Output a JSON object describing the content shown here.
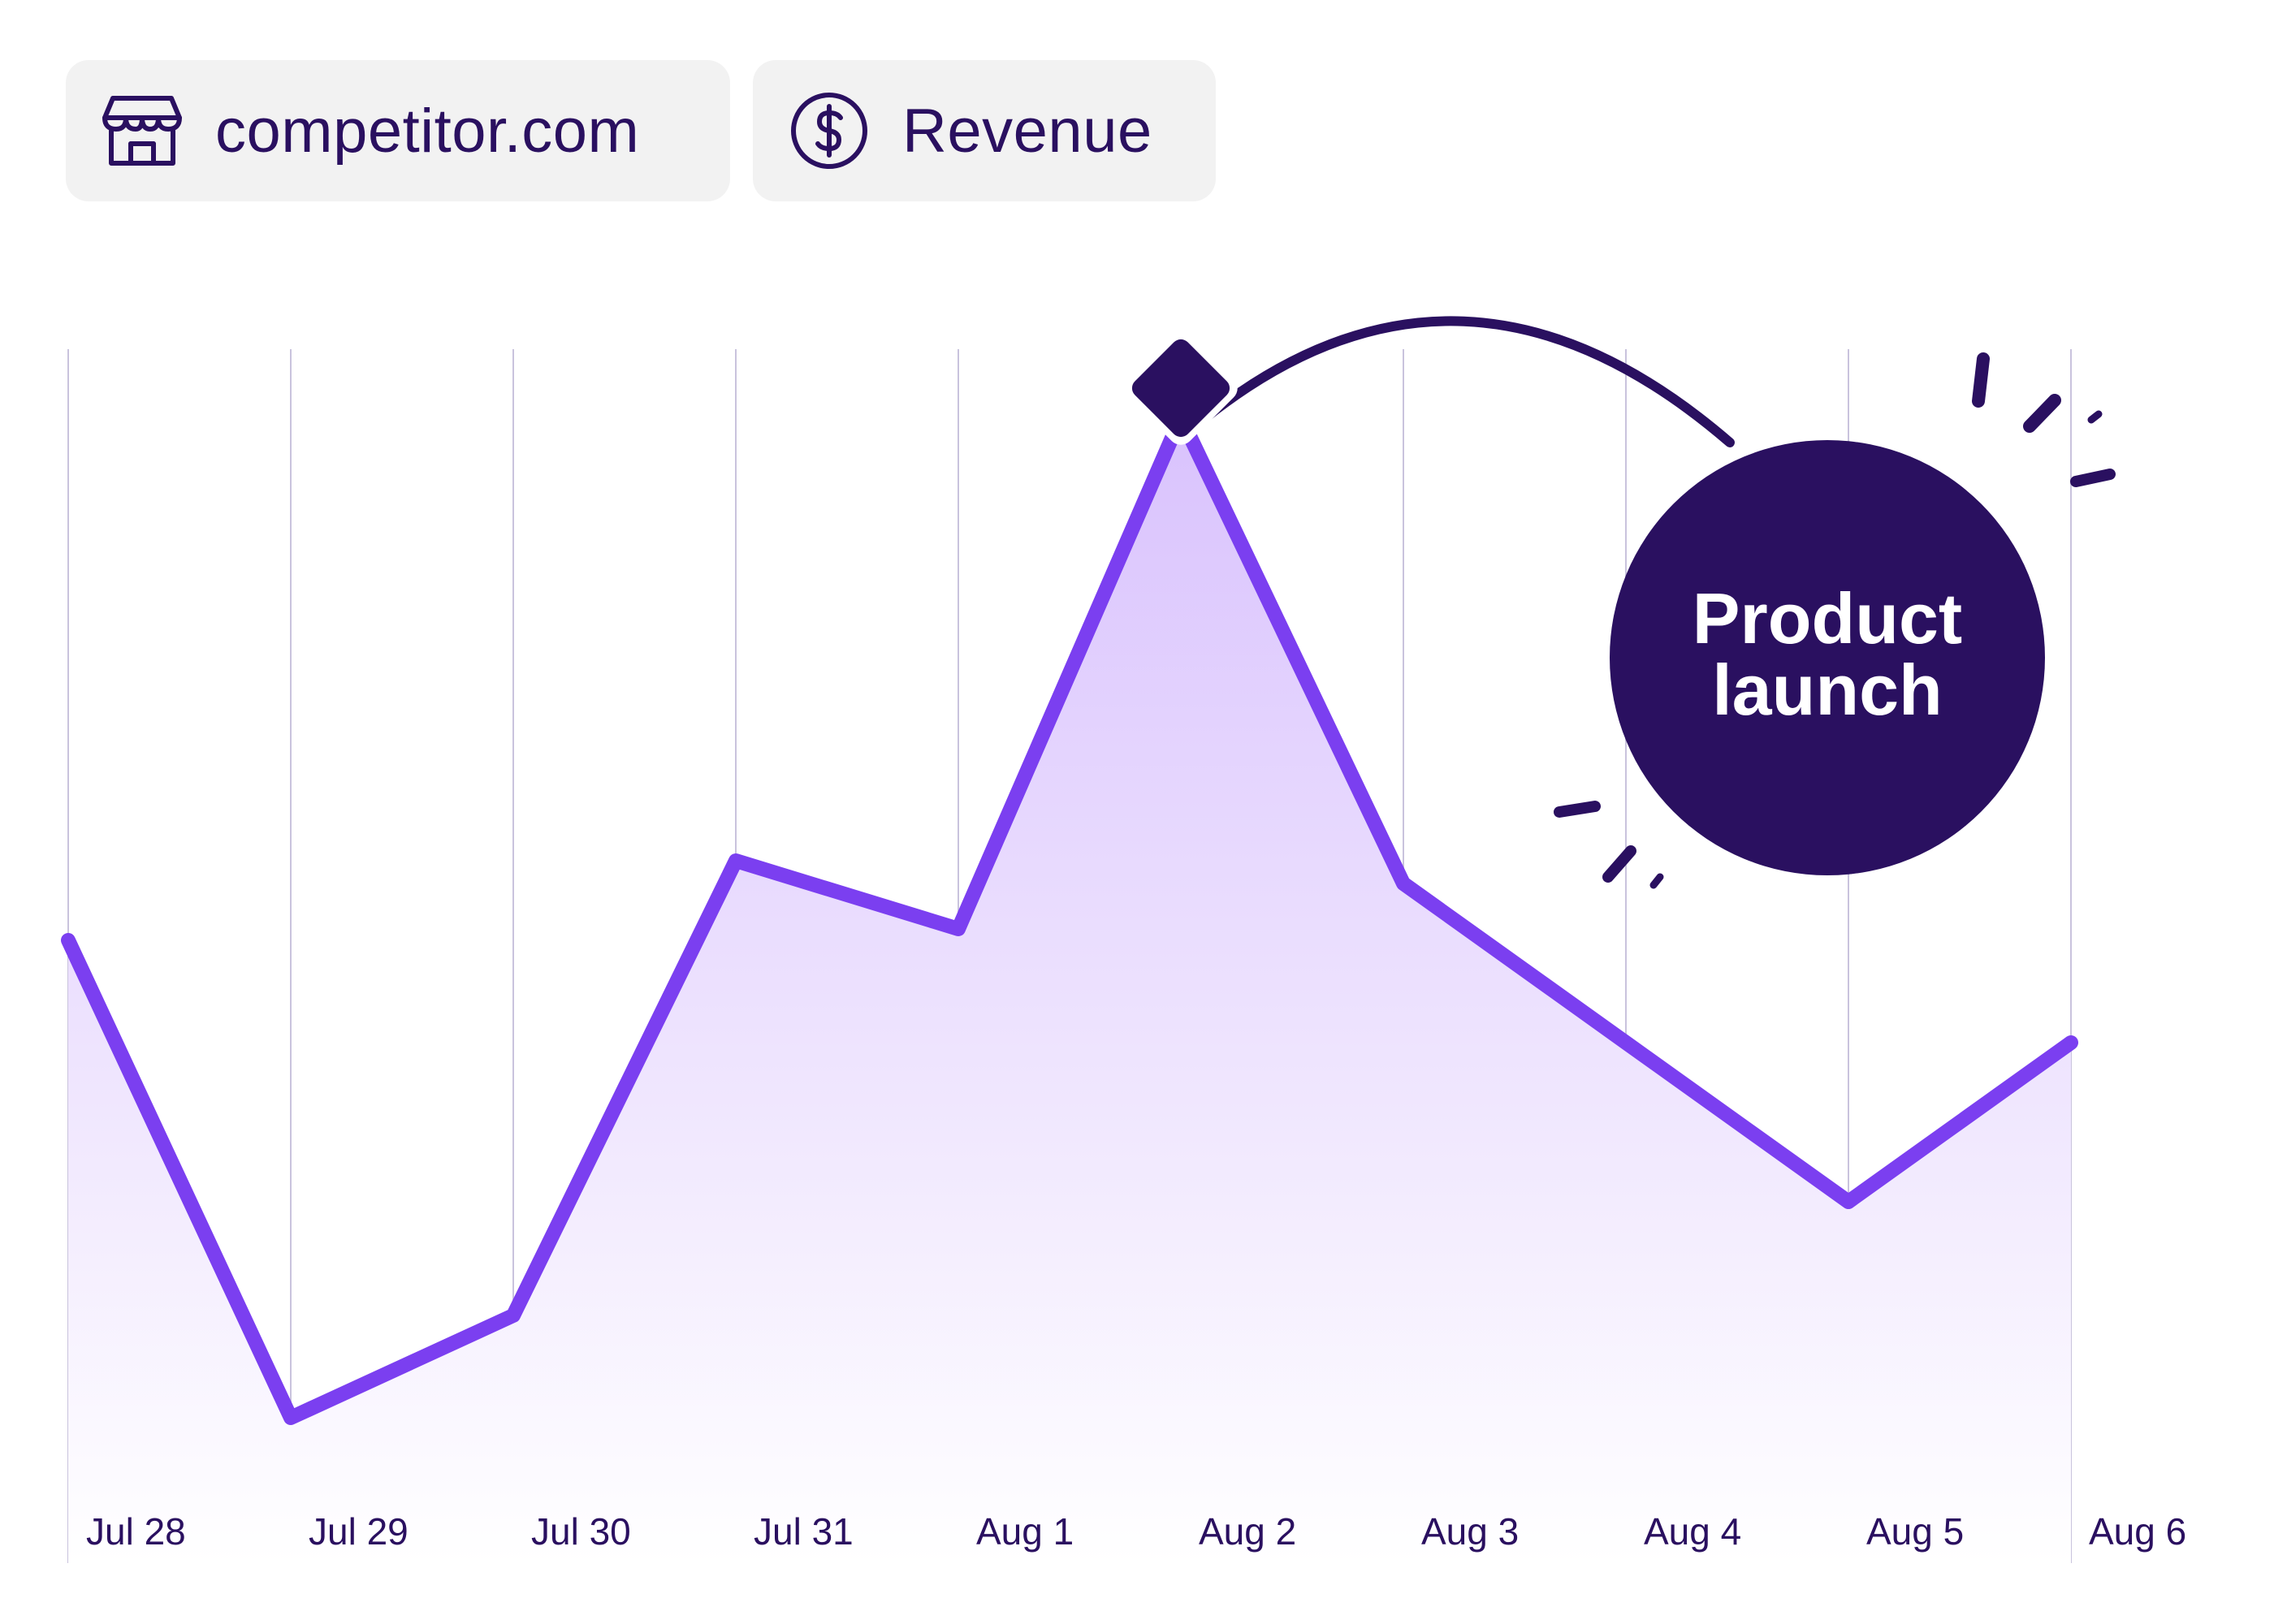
{
  "filters": {
    "site": {
      "label": "competitor.com",
      "icon": "storefront-icon"
    },
    "metric": {
      "label": "Revenue",
      "icon": "dollar-circle-icon"
    }
  },
  "colors": {
    "line": "#7b3ff0",
    "fill_top": "#d9c2fd",
    "fill_bottom": "#ffffff",
    "grid": "#c9c3dd",
    "dark": "#2a1060",
    "chip_bg": "#f2f2f2"
  },
  "chart_data": {
    "type": "area",
    "categories": [
      "Jul 28",
      "Jul 29",
      "Jul 30",
      "Jul 31",
      "Aug 1",
      "Aug 2",
      "Aug 3",
      "Aug 4",
      "Aug 5",
      "Aug 6"
    ],
    "values": [
      48,
      6,
      15,
      55,
      49,
      94,
      53,
      39,
      25,
      39
    ],
    "ylim": [
      0,
      100
    ],
    "grid": "vertical",
    "highlight": {
      "index": 5,
      "label_line1": "Product",
      "label_line2": "launch"
    }
  }
}
